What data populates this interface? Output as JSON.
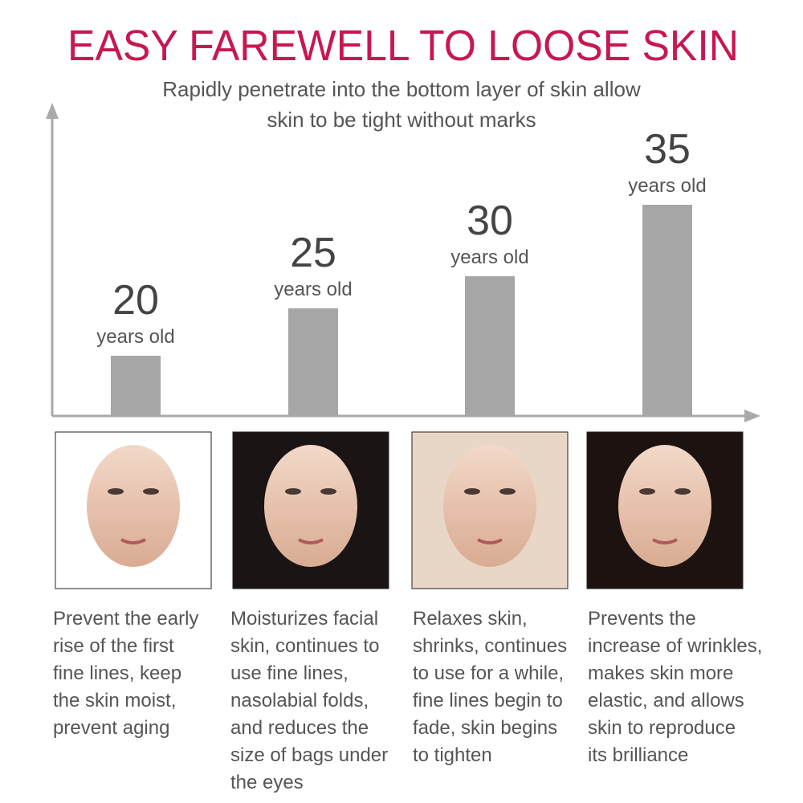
{
  "header": {
    "title": "EASY FAREWELL TO LOOSE SKIN",
    "subtitle_lines": [
      "Rapidly penetrate into the bottom layer of skin allow",
      "skin to be tight without marks"
    ]
  },
  "columns": [
    {
      "age": "20",
      "unit": "years old",
      "description_lines": [
        "Prevent the early",
        "rise of the first",
        "fine lines, keep",
        "the skin moist,",
        "prevent aging"
      ]
    },
    {
      "age": "25",
      "unit": "years old",
      "description_lines": [
        "Moisturizes facial",
        "skin, continues to",
        "use fine lines,",
        "nasolabial folds,",
        "and reduces the",
        "size of bags under",
        "the eyes"
      ]
    },
    {
      "age": "30",
      "unit": "years old",
      "description_lines": [
        "Relaxes skin,",
        "shrinks, continues",
        "to use for a while,",
        "fine lines begin to",
        "fade, skin begins",
        "to tighten"
      ]
    },
    {
      "age": "35",
      "unit": "years old",
      "description_lines": [
        "Prevents the",
        "increase of wrinkles,",
        "makes skin more",
        "elastic, and allows",
        "skin to reproduce",
        "its brilliance"
      ]
    }
  ]
}
